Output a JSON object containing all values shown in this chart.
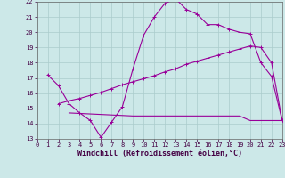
{
  "line1_x": [
    1,
    2,
    3,
    4,
    5,
    6,
    7,
    8,
    9,
    10,
    11,
    12,
    13,
    14,
    15,
    16,
    17,
    18,
    19,
    20,
    21,
    22,
    23
  ],
  "line1_y": [
    17.2,
    16.5,
    15.3,
    14.7,
    14.2,
    13.1,
    14.1,
    15.1,
    17.6,
    19.8,
    21.0,
    21.9,
    22.2,
    21.5,
    21.2,
    20.5,
    20.5,
    20.2,
    20.0,
    19.9,
    18.0,
    17.1,
    14.2
  ],
  "line2_x": [
    3,
    9,
    10,
    11,
    12,
    13,
    14,
    15,
    16,
    17,
    18,
    19,
    20,
    21,
    22,
    23
  ],
  "line2_y": [
    14.7,
    14.5,
    14.5,
    14.5,
    14.5,
    14.5,
    14.5,
    14.5,
    14.5,
    14.5,
    14.5,
    14.5,
    14.2,
    14.2,
    14.2,
    14.2
  ],
  "line3_x": [
    2,
    3,
    4,
    5,
    6,
    7,
    8,
    9,
    10,
    11,
    12,
    13,
    14,
    15,
    16,
    17,
    18,
    19,
    20,
    21,
    22,
    23
  ],
  "line3_y": [
    15.3,
    15.5,
    15.65,
    15.85,
    16.05,
    16.3,
    16.55,
    16.75,
    16.95,
    17.15,
    17.4,
    17.6,
    17.9,
    18.1,
    18.3,
    18.5,
    18.7,
    18.9,
    19.1,
    19.0,
    18.0,
    14.2
  ],
  "color": "#990099",
  "bg_color": "#cce8e8",
  "grid_color": "#b0d8d8",
  "xlim": [
    0,
    23
  ],
  "ylim": [
    13,
    22
  ],
  "xticks": [
    0,
    1,
    2,
    3,
    4,
    5,
    6,
    7,
    8,
    9,
    10,
    11,
    12,
    13,
    14,
    15,
    16,
    17,
    18,
    19,
    20,
    21,
    22,
    23
  ],
  "yticks": [
    13,
    14,
    15,
    16,
    17,
    18,
    19,
    20,
    21,
    22
  ],
  "xlabel": "Windchill (Refroidissement éolien,°C)",
  "marker": "+",
  "markersize": 3.5,
  "linewidth": 0.8,
  "tick_fontsize": 5.0,
  "xlabel_fontsize": 6.0
}
